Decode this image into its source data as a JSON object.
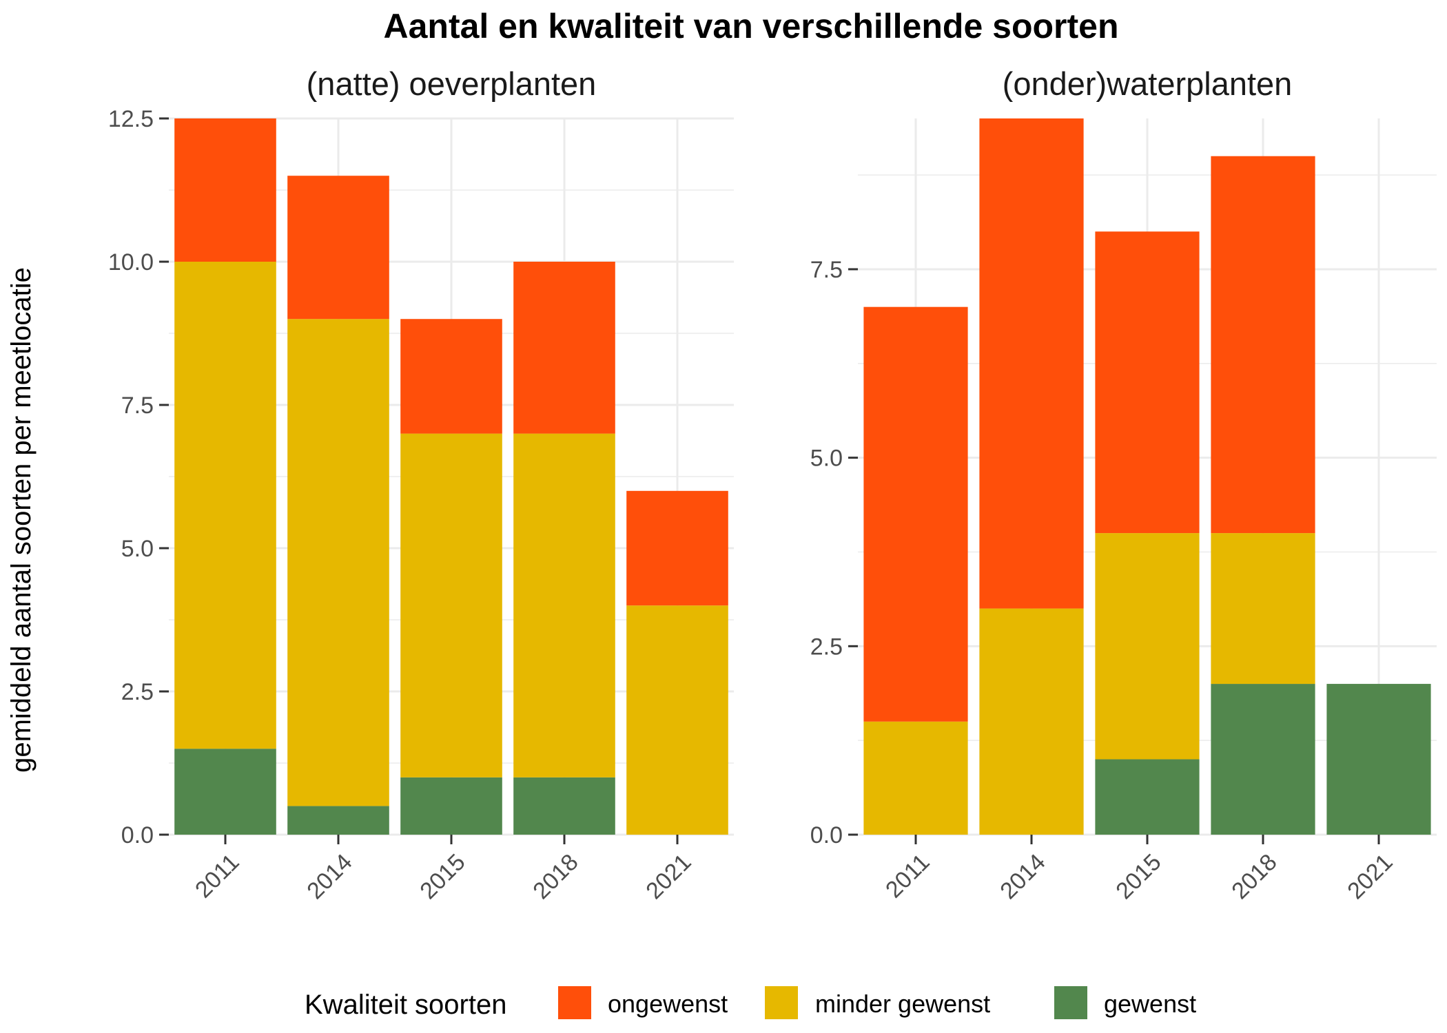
{
  "chart_data": {
    "type": "bar",
    "stacked": true,
    "title": "Aantal en kwaliteit van verschillende soorten",
    "ylabel": "gemiddeld aantal soorten per meetlocatie",
    "xlabel": "",
    "colors": {
      "ongewenst": "#FF4F0A",
      "minder gewenst": "#E6B800",
      "gewenst": "#52874D"
    },
    "grid": true,
    "legend": {
      "title": "Kwaliteit soorten",
      "position": "bottom",
      "entries": [
        "ongewenst",
        "minder gewenst",
        "gewenst"
      ]
    },
    "panels": [
      {
        "title": "(natte) oeverplanten",
        "categories": [
          "2011",
          "2014",
          "2015",
          "2018",
          "2021"
        ],
        "ylim": [
          0,
          12.5
        ],
        "yticks": [
          0,
          2.5,
          5,
          7.5,
          10,
          12.5
        ],
        "ytick_labels": [
          "0.0",
          "2.5",
          "5.0",
          "7.5",
          "10.0",
          "12.5"
        ],
        "series": [
          {
            "name": "gewenst",
            "values": [
              1.5,
              0.5,
              1,
              1,
              0
            ]
          },
          {
            "name": "minder gewenst",
            "values": [
              8.5,
              8.5,
              6,
              6,
              4
            ]
          },
          {
            "name": "ongewenst",
            "values": [
              2.5,
              2.5,
              2,
              3,
              2
            ]
          }
        ]
      },
      {
        "title": "(onder)waterplanten",
        "categories": [
          "2011",
          "2014",
          "2015",
          "2018",
          "2021"
        ],
        "ylim": [
          0,
          9.5
        ],
        "yticks": [
          0,
          2.5,
          5,
          7.5
        ],
        "ytick_labels": [
          "0.0",
          "2.5",
          "5.0",
          "7.5"
        ],
        "series": [
          {
            "name": "gewenst",
            "values": [
              0,
              0,
              1,
              2,
              2
            ]
          },
          {
            "name": "minder gewenst",
            "values": [
              1.5,
              3,
              3,
              2,
              0
            ]
          },
          {
            "name": "ongewenst",
            "values": [
              5.5,
              6.5,
              4,
              5,
              0
            ]
          }
        ]
      }
    ]
  }
}
